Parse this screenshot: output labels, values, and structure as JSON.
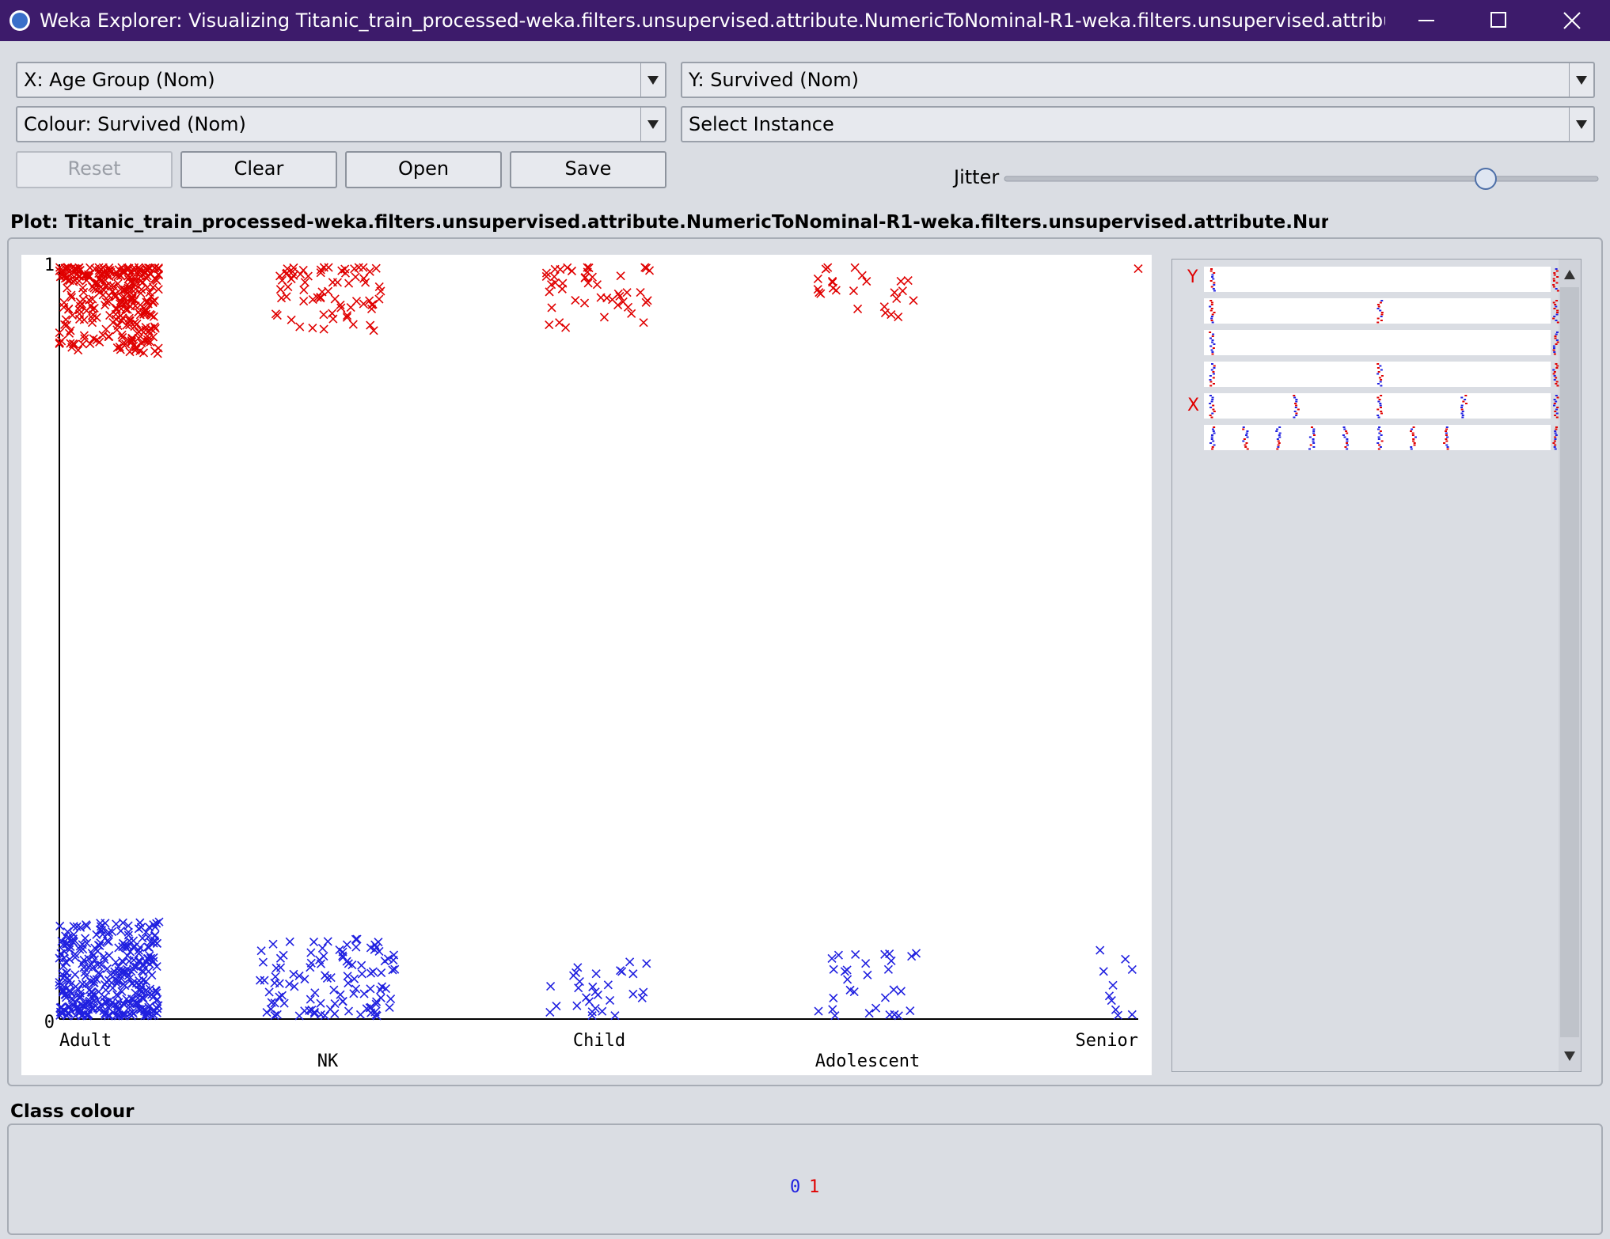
{
  "window": {
    "title": "Weka Explorer: Visualizing Titanic_train_processed-weka.filters.unsupervised.attribute.NumericToNominal-R1-weka.filters.unsupervised.attribute.NumericToNo..."
  },
  "controls": {
    "x_axis": "X: Age Group (Nom)",
    "y_axis": "Y: Survived (Nom)",
    "colour": "Colour: Survived (Nom)",
    "instance": "Select Instance",
    "buttons": [
      "Reset",
      "Clear",
      "Open",
      "Save"
    ],
    "jitter": "Jitter"
  },
  "plot": {
    "title": "Plot: Titanic_train_processed-weka.filters.unsupervised.attribute.NumericToNominal-R1-weka.filters.unsupervised.attribute.NumericToNominal-R",
    "y_labels": [
      "1",
      "0"
    ],
    "x_labels": [
      "Adult",
      "NK",
      "Child",
      "Adolescent",
      "Senior"
    ],
    "attribute_markers": [
      "Y",
      "X"
    ]
  },
  "class_colour": {
    "title": "Class colour",
    "classes": [
      "0",
      "1"
    ]
  }
}
